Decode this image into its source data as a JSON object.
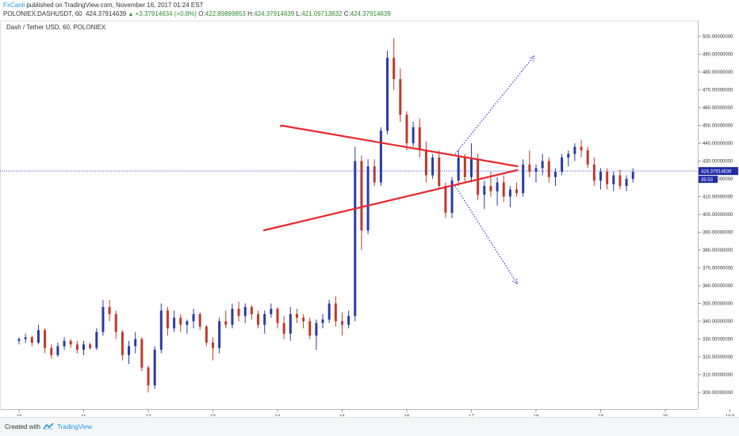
{
  "header": {
    "author": "FxCanli",
    "published_text": " published on TradingView.com, November 16, 2017 01:24 EST",
    "symbol_line": "POLONIEX:DASHUSDT, 60",
    "last_price": "424.37914639",
    "change": "+3.37914634 (+0.8%)",
    "open_label": "O:",
    "open": "422.89899853",
    "high_label": "H:",
    "high": "424.37914639",
    "low_label": "L:",
    "low": "421.09713832",
    "close_label": "C:",
    "close": "424.37914639"
  },
  "chart_title": "Dash / Tether USD, 60, POLONIEX",
  "chart_data": {
    "type": "candlestick",
    "title": "Dash / Tether USD, 60, POLONIEX",
    "ylim": [
      292,
      503
    ],
    "y_ticks": [
      "300.00000000",
      "310.00000000",
      "320.00000000",
      "330.00000000",
      "340.00000000",
      "350.00000000",
      "360.00000000",
      "370.00000000",
      "380.00000000",
      "390.00000000",
      "400.00000000",
      "410.00000000",
      "420.00000000",
      "430.00000000",
      "440.00000000",
      "450.00000000",
      "460.00000000",
      "470.00000000",
      "480.00000000",
      "490.00000000",
      "500.00000000"
    ],
    "x_ticks": [
      "10",
      "11",
      "12",
      "13",
      "14",
      "15",
      "16",
      "17",
      "18",
      "19",
      "20",
      "13:0"
    ],
    "price_line": 424.38,
    "price_label": "424.37914639",
    "countdown_label": "35:53",
    "bull_color": "#2a3aa8",
    "bear_color": "#c0392b",
    "grid": false,
    "candles": [
      [
        0.0,
        329,
        331,
        327,
        330
      ],
      [
        0.1,
        330,
        333,
        328,
        331
      ],
      [
        0.2,
        331,
        332,
        326,
        328
      ],
      [
        0.3,
        328,
        338,
        327,
        335
      ],
      [
        0.4,
        335,
        336,
        322,
        325
      ],
      [
        0.5,
        325,
        327,
        319,
        321
      ],
      [
        0.6,
        321,
        328,
        320,
        326
      ],
      [
        0.7,
        326,
        331,
        324,
        329
      ],
      [
        0.8,
        329,
        330,
        325,
        327
      ],
      [
        0.9,
        327,
        329,
        322,
        324
      ],
      [
        1.0,
        324,
        329,
        321,
        327
      ],
      [
        1.1,
        327,
        328,
        324,
        325
      ],
      [
        1.2,
        325,
        336,
        324,
        334
      ],
      [
        1.3,
        334,
        352,
        332,
        348
      ],
      [
        1.4,
        348,
        352,
        340,
        344
      ],
      [
        1.5,
        344,
        346,
        330,
        334
      ],
      [
        1.6,
        334,
        335,
        318,
        321
      ],
      [
        1.7,
        321,
        329,
        316,
        326
      ],
      [
        1.8,
        326,
        334,
        322,
        330
      ],
      [
        1.9,
        330,
        331,
        312,
        314
      ],
      [
        2.0,
        314,
        315,
        300,
        304
      ],
      [
        2.1,
        304,
        326,
        302,
        324
      ],
      [
        2.2,
        324,
        350,
        322,
        346
      ],
      [
        2.3,
        346,
        348,
        332,
        336
      ],
      [
        2.4,
        336,
        346,
        334,
        342
      ],
      [
        2.5,
        342,
        344,
        334,
        338
      ],
      [
        2.6,
        338,
        341,
        333,
        340
      ],
      [
        2.7,
        340,
        347,
        336,
        344
      ],
      [
        2.8,
        344,
        345,
        335,
        337
      ],
      [
        2.9,
        337,
        338,
        326,
        328
      ],
      [
        3.0,
        328,
        331,
        318,
        325
      ],
      [
        3.1,
        325,
        342,
        322,
        340
      ],
      [
        3.2,
        340,
        346,
        336,
        338
      ],
      [
        3.3,
        338,
        350,
        336,
        347
      ],
      [
        3.4,
        347,
        351,
        340,
        343
      ],
      [
        3.5,
        343,
        350,
        339,
        348
      ],
      [
        3.6,
        348,
        349,
        341,
        344
      ],
      [
        3.7,
        344,
        346,
        336,
        338
      ],
      [
        3.8,
        338,
        346,
        333,
        344
      ],
      [
        3.9,
        344,
        350,
        342,
        347
      ],
      [
        4.0,
        347,
        348,
        336,
        339
      ],
      [
        4.1,
        339,
        343,
        330,
        333
      ],
      [
        4.2,
        333,
        348,
        329,
        344
      ],
      [
        4.3,
        344,
        347,
        339,
        342
      ],
      [
        4.4,
        342,
        344,
        336,
        340
      ],
      [
        4.5,
        340,
        342,
        330,
        332
      ],
      [
        4.6,
        332,
        341,
        324,
        339
      ],
      [
        4.7,
        339,
        344,
        336,
        341
      ],
      [
        4.8,
        341,
        352,
        339,
        350
      ],
      [
        4.9,
        350,
        354,
        337,
        340
      ],
      [
        5.0,
        340,
        345,
        332,
        338
      ],
      [
        5.1,
        338,
        346,
        336,
        343
      ],
      [
        5.2,
        343,
        438,
        340,
        430
      ],
      [
        5.3,
        430,
        433,
        380,
        391
      ],
      [
        5.4,
        391,
        431,
        389,
        427
      ],
      [
        5.5,
        427,
        431,
        416,
        418
      ],
      [
        5.6,
        418,
        449,
        416,
        447
      ],
      [
        5.7,
        447,
        492,
        445,
        488
      ],
      [
        5.8,
        488,
        499,
        470,
        476
      ],
      [
        5.9,
        476,
        482,
        452,
        456
      ],
      [
        6.0,
        456,
        458,
        436,
        440
      ],
      [
        6.1,
        440,
        452,
        438,
        449
      ],
      [
        6.2,
        449,
        454,
        432,
        436
      ],
      [
        6.3,
        436,
        441,
        418,
        422
      ],
      [
        6.4,
        422,
        434,
        420,
        432
      ],
      [
        6.5,
        432,
        436,
        414,
        416
      ],
      [
        6.6,
        416,
        418,
        398,
        401
      ],
      [
        6.7,
        401,
        421,
        398,
        419
      ],
      [
        6.8,
        419,
        436,
        416,
        432
      ],
      [
        6.9,
        432,
        434,
        418,
        421
      ],
      [
        7.0,
        421,
        440,
        418,
        431
      ],
      [
        7.1,
        431,
        434,
        408,
        411
      ],
      [
        7.2,
        411,
        419,
        403,
        416
      ],
      [
        7.3,
        416,
        424,
        410,
        413
      ],
      [
        7.4,
        413,
        421,
        405,
        418
      ],
      [
        7.5,
        418,
        422,
        407,
        410
      ],
      [
        7.6,
        410,
        416,
        404,
        414
      ],
      [
        7.7,
        414,
        418,
        410,
        412
      ],
      [
        7.8,
        412,
        431,
        410,
        428
      ],
      [
        7.9,
        428,
        436,
        421,
        424
      ],
      [
        8.0,
        424,
        428,
        418,
        426
      ],
      [
        8.1,
        426,
        434,
        422,
        430
      ],
      [
        8.2,
        430,
        432,
        418,
        421
      ],
      [
        8.3,
        421,
        426,
        416,
        424
      ],
      [
        8.4,
        424,
        434,
        422,
        432
      ],
      [
        8.5,
        432,
        436,
        427,
        434
      ],
      [
        8.6,
        434,
        440,
        430,
        438
      ],
      [
        8.7,
        438,
        442,
        432,
        436
      ],
      [
        8.8,
        436,
        438,
        426,
        428
      ],
      [
        8.9,
        428,
        432,
        416,
        419
      ],
      [
        9.0,
        419,
        426,
        414,
        424
      ],
      [
        9.1,
        424,
        426,
        414,
        417
      ],
      [
        9.2,
        417,
        424,
        413,
        422
      ],
      [
        9.3,
        422,
        425,
        414,
        416
      ],
      [
        9.4,
        416,
        422,
        413,
        420
      ],
      [
        9.5,
        420,
        426,
        418,
        424
      ]
    ],
    "annotations": {
      "triangle": {
        "upper": [
          [
            4.05,
            450
          ],
          [
            7.72,
            427
          ]
        ],
        "lower": [
          [
            3.78,
            391
          ],
          [
            7.72,
            425
          ]
        ]
      },
      "projection_up": {
        "from": [
          6.75,
          434
        ],
        "to": [
          7.97,
          489
        ]
      },
      "projection_down": {
        "from": [
          6.75,
          416
        ],
        "to": [
          7.71,
          361
        ]
      }
    }
  },
  "footer": {
    "created_with": "Created with",
    "brand": "TradingView"
  }
}
